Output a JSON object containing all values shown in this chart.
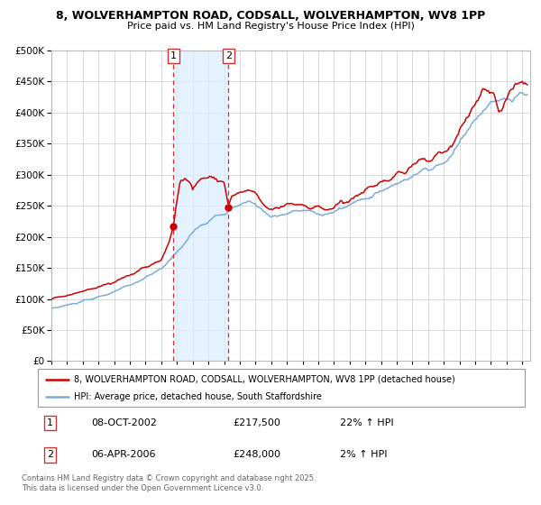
{
  "title1": "8, WOLVERHAMPTON ROAD, CODSALL, WOLVERHAMPTON, WV8 1PP",
  "title2": "Price paid vs. HM Land Registry's House Price Index (HPI)",
  "hpi_color": "#7aaddb",
  "price_color": "#cc0000",
  "marker_color": "#cc0000",
  "shade_color": "#ddeeff",
  "vline_color": "#cc3333",
  "legend_line1": "8, WOLVERHAMPTON ROAD, CODSALL, WOLVERHAMPTON, WV8 1PP (detached house)",
  "legend_line2": "HPI: Average price, detached house, South Staffordshire",
  "annotation1_date": "08-OCT-2002",
  "annotation1_price": "£217,500",
  "annotation1_hpi": "22% ↑ HPI",
  "annotation2_date": "06-APR-2006",
  "annotation2_price": "£248,000",
  "annotation2_hpi": "2% ↑ HPI",
  "footer": "Contains HM Land Registry data © Crown copyright and database right 2025.\nThis data is licensed under the Open Government Licence v3.0.",
  "ylim": [
    0,
    500000
  ],
  "yticks": [
    0,
    50000,
    100000,
    150000,
    200000,
    250000,
    300000,
    350000,
    400000,
    450000,
    500000
  ],
  "xmin": 1995.0,
  "xmax": 2025.5,
  "sale1_x": 2002.77,
  "sale2_x": 2006.27,
  "sale1_y": 217500,
  "sale2_y": 248000
}
